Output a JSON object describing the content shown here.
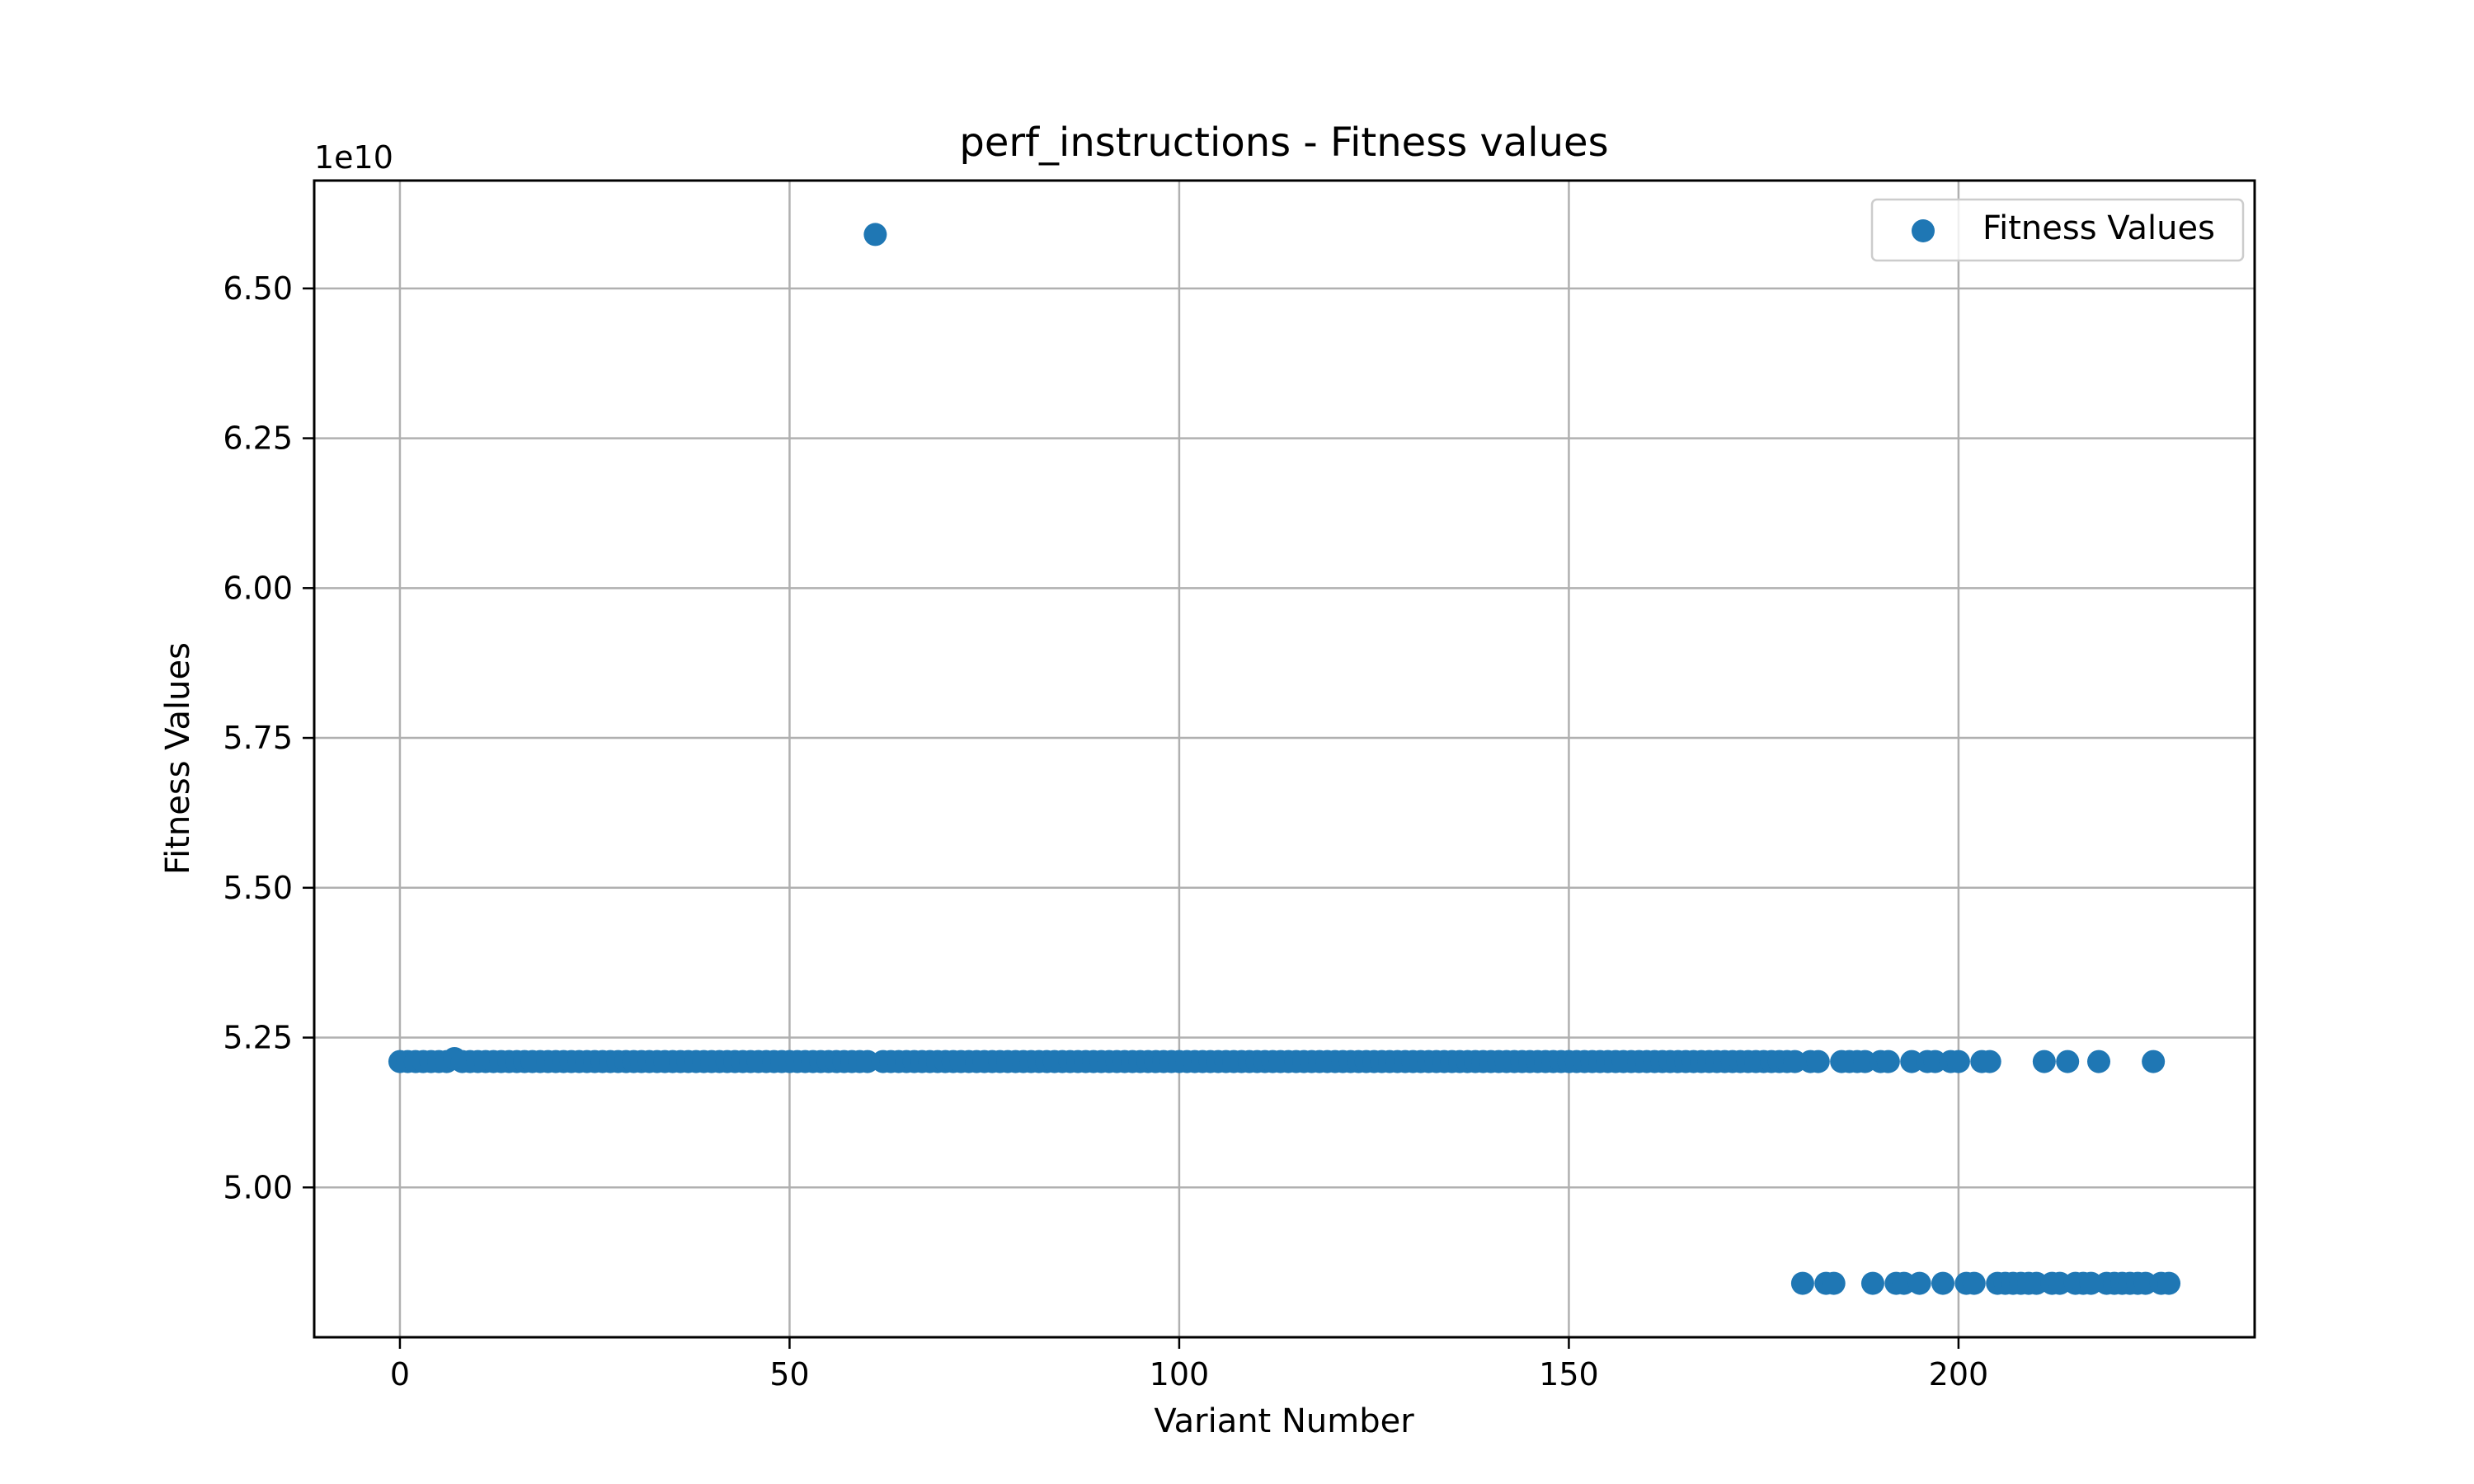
{
  "chart_data": {
    "type": "scatter",
    "title": "perf_instructions - Fitness values",
    "xlabel": "Variant Number",
    "ylabel": "Fitness Values",
    "y_offset_label": "1e10",
    "xlim": [
      -11,
      238
    ],
    "ylim": [
      4.75,
      6.68
    ],
    "x_ticks": [
      0,
      50,
      100,
      150,
      200
    ],
    "x_tick_labels": [
      "0",
      "50",
      "100",
      "150",
      "200"
    ],
    "y_ticks": [
      5.0,
      5.25,
      5.5,
      5.75,
      6.0,
      6.25,
      6.5
    ],
    "y_tick_labels": [
      "5.00",
      "5.25",
      "5.50",
      "5.75",
      "6.00",
      "6.25",
      "6.50"
    ],
    "grid": true,
    "legend_position": "top-right",
    "colors": {
      "series": "#1f77b4",
      "grid": "#b0b0b0"
    },
    "series": [
      {
        "name": "Fitness Values",
        "points": [
          [
            0,
            5.21
          ],
          [
            1,
            5.21
          ],
          [
            2,
            5.21
          ],
          [
            3,
            5.21
          ],
          [
            4,
            5.21
          ],
          [
            5,
            5.21
          ],
          [
            6,
            5.21
          ],
          [
            7,
            5.215
          ],
          [
            8,
            5.21
          ],
          [
            9,
            5.21
          ],
          [
            10,
            5.21
          ],
          [
            11,
            5.21
          ],
          [
            12,
            5.21
          ],
          [
            13,
            5.21
          ],
          [
            14,
            5.21
          ],
          [
            15,
            5.21
          ],
          [
            16,
            5.21
          ],
          [
            17,
            5.21
          ],
          [
            18,
            5.21
          ],
          [
            19,
            5.21
          ],
          [
            20,
            5.21
          ],
          [
            21,
            5.21
          ],
          [
            22,
            5.21
          ],
          [
            23,
            5.21
          ],
          [
            24,
            5.21
          ],
          [
            25,
            5.21
          ],
          [
            26,
            5.21
          ],
          [
            27,
            5.21
          ],
          [
            28,
            5.21
          ],
          [
            29,
            5.21
          ],
          [
            30,
            5.21
          ],
          [
            31,
            5.21
          ],
          [
            32,
            5.21
          ],
          [
            33,
            5.21
          ],
          [
            34,
            5.21
          ],
          [
            35,
            5.21
          ],
          [
            36,
            5.21
          ],
          [
            37,
            5.21
          ],
          [
            38,
            5.21
          ],
          [
            39,
            5.21
          ],
          [
            40,
            5.21
          ],
          [
            41,
            5.21
          ],
          [
            42,
            5.21
          ],
          [
            43,
            5.21
          ],
          [
            44,
            5.21
          ],
          [
            45,
            5.21
          ],
          [
            46,
            5.21
          ],
          [
            47,
            5.21
          ],
          [
            48,
            5.21
          ],
          [
            49,
            5.21
          ],
          [
            50,
            5.21
          ],
          [
            51,
            5.21
          ],
          [
            52,
            5.21
          ],
          [
            53,
            5.21
          ],
          [
            54,
            5.21
          ],
          [
            55,
            5.21
          ],
          [
            56,
            5.21
          ],
          [
            57,
            5.21
          ],
          [
            58,
            5.21
          ],
          [
            59,
            5.21
          ],
          [
            60,
            5.21
          ],
          [
            61,
            6.59
          ],
          [
            62,
            5.21
          ],
          [
            63,
            5.21
          ],
          [
            64,
            5.21
          ],
          [
            65,
            5.21
          ],
          [
            66,
            5.21
          ],
          [
            67,
            5.21
          ],
          [
            68,
            5.21
          ],
          [
            69,
            5.21
          ],
          [
            70,
            5.21
          ],
          [
            71,
            5.21
          ],
          [
            72,
            5.21
          ],
          [
            73,
            5.21
          ],
          [
            74,
            5.21
          ],
          [
            75,
            5.21
          ],
          [
            76,
            5.21
          ],
          [
            77,
            5.21
          ],
          [
            78,
            5.21
          ],
          [
            79,
            5.21
          ],
          [
            80,
            5.21
          ],
          [
            81,
            5.21
          ],
          [
            82,
            5.21
          ],
          [
            83,
            5.21
          ],
          [
            84,
            5.21
          ],
          [
            85,
            5.21
          ],
          [
            86,
            5.21
          ],
          [
            87,
            5.21
          ],
          [
            88,
            5.21
          ],
          [
            89,
            5.21
          ],
          [
            90,
            5.21
          ],
          [
            91,
            5.21
          ],
          [
            92,
            5.21
          ],
          [
            93,
            5.21
          ],
          [
            94,
            5.21
          ],
          [
            95,
            5.21
          ],
          [
            96,
            5.21
          ],
          [
            97,
            5.21
          ],
          [
            98,
            5.21
          ],
          [
            99,
            5.21
          ],
          [
            100,
            5.21
          ],
          [
            101,
            5.21
          ],
          [
            102,
            5.21
          ],
          [
            103,
            5.21
          ],
          [
            104,
            5.21
          ],
          [
            105,
            5.21
          ],
          [
            106,
            5.21
          ],
          [
            107,
            5.21
          ],
          [
            108,
            5.21
          ],
          [
            109,
            5.21
          ],
          [
            110,
            5.21
          ],
          [
            111,
            5.21
          ],
          [
            112,
            5.21
          ],
          [
            113,
            5.21
          ],
          [
            114,
            5.21
          ],
          [
            115,
            5.21
          ],
          [
            116,
            5.21
          ],
          [
            117,
            5.21
          ],
          [
            118,
            5.21
          ],
          [
            119,
            5.21
          ],
          [
            120,
            5.21
          ],
          [
            121,
            5.21
          ],
          [
            122,
            5.21
          ],
          [
            123,
            5.21
          ],
          [
            124,
            5.21
          ],
          [
            125,
            5.21
          ],
          [
            126,
            5.21
          ],
          [
            127,
            5.21
          ],
          [
            128,
            5.21
          ],
          [
            129,
            5.21
          ],
          [
            130,
            5.21
          ],
          [
            131,
            5.21
          ],
          [
            132,
            5.21
          ],
          [
            133,
            5.21
          ],
          [
            134,
            5.21
          ],
          [
            135,
            5.21
          ],
          [
            136,
            5.21
          ],
          [
            137,
            5.21
          ],
          [
            138,
            5.21
          ],
          [
            139,
            5.21
          ],
          [
            140,
            5.21
          ],
          [
            141,
            5.21
          ],
          [
            142,
            5.21
          ],
          [
            143,
            5.21
          ],
          [
            144,
            5.21
          ],
          [
            145,
            5.21
          ],
          [
            146,
            5.21
          ],
          [
            147,
            5.21
          ],
          [
            148,
            5.21
          ],
          [
            149,
            5.21
          ],
          [
            150,
            5.21
          ],
          [
            151,
            5.21
          ],
          [
            152,
            5.21
          ],
          [
            153,
            5.21
          ],
          [
            154,
            5.21
          ],
          [
            155,
            5.21
          ],
          [
            156,
            5.21
          ],
          [
            157,
            5.21
          ],
          [
            158,
            5.21
          ],
          [
            159,
            5.21
          ],
          [
            160,
            5.21
          ],
          [
            161,
            5.21
          ],
          [
            162,
            5.21
          ],
          [
            163,
            5.21
          ],
          [
            164,
            5.21
          ],
          [
            165,
            5.21
          ],
          [
            166,
            5.21
          ],
          [
            167,
            5.21
          ],
          [
            168,
            5.21
          ],
          [
            169,
            5.21
          ],
          [
            170,
            5.21
          ],
          [
            171,
            5.21
          ],
          [
            172,
            5.21
          ],
          [
            173,
            5.21
          ],
          [
            174,
            5.21
          ],
          [
            175,
            5.21
          ],
          [
            176,
            5.21
          ],
          [
            177,
            5.21
          ],
          [
            178,
            5.21
          ],
          [
            179,
            5.21
          ],
          [
            180,
            4.84
          ],
          [
            181,
            5.21
          ],
          [
            182,
            5.21
          ],
          [
            183,
            4.84
          ],
          [
            184,
            4.84
          ],
          [
            185,
            5.21
          ],
          [
            186,
            5.21
          ],
          [
            187,
            5.21
          ],
          [
            188,
            5.21
          ],
          [
            189,
            4.84
          ],
          [
            190,
            5.21
          ],
          [
            191,
            5.21
          ],
          [
            192,
            4.84
          ],
          [
            193,
            4.84
          ],
          [
            194,
            5.21
          ],
          [
            195,
            4.84
          ],
          [
            196,
            5.21
          ],
          [
            197,
            5.21
          ],
          [
            198,
            4.84
          ],
          [
            199,
            5.21
          ],
          [
            200,
            5.21
          ],
          [
            201,
            4.84
          ],
          [
            202,
            4.84
          ],
          [
            203,
            5.21
          ],
          [
            204,
            5.21
          ],
          [
            205,
            4.84
          ],
          [
            206,
            4.84
          ],
          [
            207,
            4.84
          ],
          [
            208,
            4.84
          ],
          [
            209,
            4.84
          ],
          [
            210,
            4.84
          ],
          [
            211,
            5.21
          ],
          [
            212,
            4.84
          ],
          [
            213,
            4.84
          ],
          [
            214,
            5.21
          ],
          [
            215,
            4.84
          ],
          [
            216,
            4.84
          ],
          [
            217,
            4.84
          ],
          [
            218,
            5.21
          ],
          [
            219,
            4.84
          ],
          [
            220,
            4.84
          ],
          [
            221,
            4.84
          ],
          [
            222,
            4.84
          ],
          [
            223,
            4.84
          ],
          [
            224,
            4.84
          ],
          [
            225,
            5.21
          ],
          [
            226,
            4.84
          ],
          [
            227,
            4.84
          ]
        ]
      }
    ]
  }
}
